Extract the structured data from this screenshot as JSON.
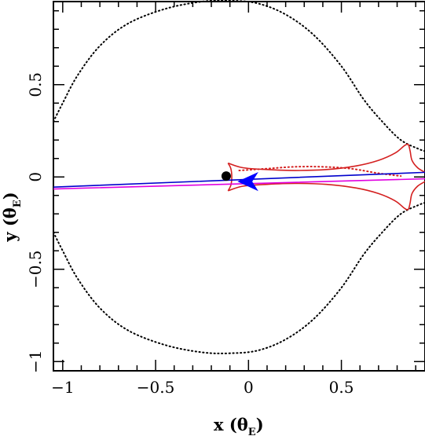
{
  "chart_data": {
    "type": "scatter",
    "xlim": [
      -1.05,
      0.95
    ],
    "ylim": [
      -1.05,
      0.95
    ],
    "x_ticks": [
      -1,
      -0.5,
      0,
      0.5
    ],
    "y_ticks": [
      -1,
      -0.5,
      0,
      0.5
    ],
    "x_tick_labels": [
      "−1",
      "−0.5",
      "0",
      "0.5"
    ],
    "y_tick_labels": [
      "−1",
      "−0.5",
      "0",
      "0.5"
    ],
    "xlabel": {
      "main": "x (θ",
      "sub": "E",
      "close": ")"
    },
    "ylabel": {
      "main": "y (θ",
      "sub": "E",
      "close": ")"
    },
    "grid": false,
    "colors": {
      "critical_curve": "#000000",
      "caustic": "#d42020",
      "trajectory": "#0000cc",
      "trajectory2": "#e000e0",
      "arrow": "#0000ff",
      "lens": "#000000"
    },
    "series": [
      {
        "kind": "critical-curve-dotted",
        "color": "#000000",
        "points": [
          [
            -1.05,
            0.3
          ],
          [
            -1.0,
            0.4
          ],
          [
            -0.92,
            0.55
          ],
          [
            -0.8,
            0.71
          ],
          [
            -0.65,
            0.83
          ],
          [
            -0.45,
            0.91
          ],
          [
            -0.25,
            0.95
          ],
          [
            -0.1,
            0.955
          ],
          [
            0.05,
            0.94
          ],
          [
            0.2,
            0.88
          ],
          [
            0.35,
            0.77
          ],
          [
            0.5,
            0.6
          ],
          [
            0.62,
            0.42
          ],
          [
            0.72,
            0.3
          ],
          [
            0.82,
            0.2
          ],
          [
            0.92,
            0.15
          ],
          [
            0.95,
            0.14
          ]
        ]
      },
      {
        "kind": "critical-curve-dotted",
        "color": "#000000",
        "points": [
          [
            -1.05,
            -0.3
          ],
          [
            -1.0,
            -0.4
          ],
          [
            -0.92,
            -0.55
          ],
          [
            -0.8,
            -0.71
          ],
          [
            -0.65,
            -0.83
          ],
          [
            -0.45,
            -0.91
          ],
          [
            -0.25,
            -0.95
          ],
          [
            -0.1,
            -0.955
          ],
          [
            0.05,
            -0.94
          ],
          [
            0.2,
            -0.88
          ],
          [
            0.35,
            -0.77
          ],
          [
            0.5,
            -0.6
          ],
          [
            0.62,
            -0.42
          ],
          [
            0.72,
            -0.3
          ],
          [
            0.82,
            -0.2
          ],
          [
            0.92,
            -0.15
          ],
          [
            0.95,
            -0.14
          ]
        ]
      },
      {
        "kind": "critical-curve-dotted-inner",
        "color": "#d42020",
        "points": [
          [
            -0.05,
            0.035
          ],
          [
            0.1,
            0.045
          ],
          [
            0.25,
            0.055
          ],
          [
            0.4,
            0.055
          ],
          [
            0.55,
            0.045
          ],
          [
            0.7,
            0.02
          ],
          [
            0.82,
            0.005
          ]
        ]
      },
      {
        "kind": "caustic-upper",
        "color": "#d42020",
        "points": [
          [
            -0.11,
            0.075
          ],
          [
            -0.03,
            0.05
          ],
          [
            0.1,
            0.04
          ],
          [
            0.25,
            0.035
          ],
          [
            0.42,
            0.04
          ],
          [
            0.58,
            0.06
          ],
          [
            0.7,
            0.09
          ],
          [
            0.79,
            0.13
          ],
          [
            0.84,
            0.17
          ],
          [
            0.86,
            0.175
          ],
          [
            0.87,
            0.14
          ],
          [
            0.88,
            0.09
          ],
          [
            0.91,
            0.05
          ],
          [
            0.95,
            0.025
          ]
        ]
      },
      {
        "kind": "caustic-lower",
        "color": "#d42020",
        "points": [
          [
            -0.11,
            -0.075
          ],
          [
            -0.03,
            -0.05
          ],
          [
            0.1,
            -0.04
          ],
          [
            0.25,
            -0.035
          ],
          [
            0.42,
            -0.04
          ],
          [
            0.58,
            -0.06
          ],
          [
            0.7,
            -0.09
          ],
          [
            0.79,
            -0.13
          ],
          [
            0.84,
            -0.17
          ],
          [
            0.86,
            -0.175
          ],
          [
            0.87,
            -0.14
          ],
          [
            0.88,
            -0.09
          ],
          [
            0.91,
            -0.05
          ],
          [
            0.95,
            -0.025
          ]
        ]
      },
      {
        "kind": "caustic-left-cusp",
        "color": "#d42020",
        "points": [
          [
            -0.11,
            0.075
          ],
          [
            -0.095,
            0.045
          ],
          [
            -0.09,
            0.0
          ],
          [
            -0.095,
            -0.045
          ],
          [
            -0.11,
            -0.075
          ]
        ]
      },
      {
        "kind": "trajectory",
        "color": "#0000cc",
        "points": [
          [
            -1.05,
            -0.055
          ],
          [
            0.95,
            0.025
          ]
        ]
      },
      {
        "kind": "trajectory",
        "color": "#e000e0",
        "points": [
          [
            -1.05,
            -0.065
          ],
          [
            0.95,
            -0.01
          ]
        ]
      }
    ],
    "markers": [
      {
        "kind": "lens-dot",
        "x": -0.12,
        "y": 0.005,
        "color": "#000000"
      },
      {
        "kind": "direction-arrow",
        "x": 0.005,
        "y": -0.025,
        "dx": -1,
        "color": "#0000ff"
      }
    ]
  }
}
